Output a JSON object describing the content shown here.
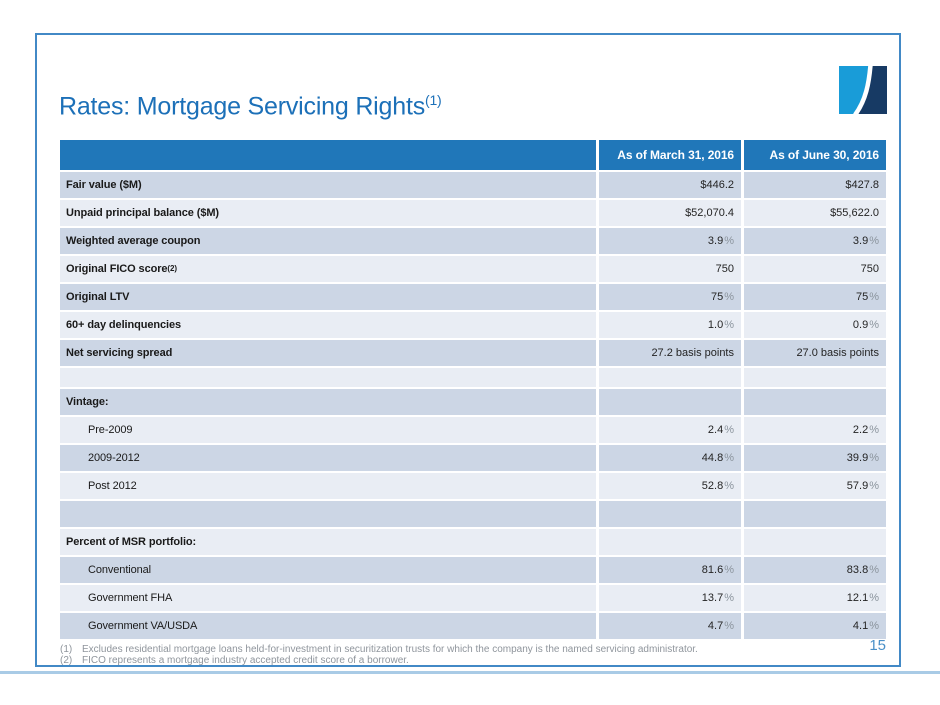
{
  "slide": {
    "title": "Rates: Mortgage Servicing Rights",
    "title_sup": "(1)",
    "page_number": "15"
  },
  "table": {
    "header": {
      "label_col": "",
      "col1": "As of March 31, 2016",
      "col2": "As of June 30, 2016"
    },
    "rows": [
      {
        "label": "Fair value ($M)",
        "bold": true,
        "v1": "$446.2",
        "v2": "$427.8"
      },
      {
        "label": "Unpaid principal balance ($M)",
        "bold": true,
        "v1": "$52,070.4",
        "v2": "$55,622.0"
      },
      {
        "label": "Weighted average coupon",
        "bold": true,
        "v1": "3.9%",
        "v2": "3.9%"
      },
      {
        "label": "Original FICO score",
        "sup": "(2)",
        "bold": true,
        "v1": "750",
        "v2": "750"
      },
      {
        "label": "Original LTV",
        "bold": true,
        "v1": "75%",
        "v2": "75%"
      },
      {
        "label": "60+ day delinquencies",
        "bold": true,
        "v1": "1.0%",
        "v2": "0.9%"
      },
      {
        "label": "Net servicing spread",
        "bold": true,
        "v1": "27.2 basis points",
        "v2": "27.0 basis points"
      },
      {
        "label": "",
        "short": true,
        "v1": "",
        "v2": ""
      },
      {
        "label": "Vintage:",
        "bold": true,
        "v1": "",
        "v2": ""
      },
      {
        "label": "Pre-2009",
        "indent": true,
        "v1": "2.4%",
        "v2": "2.2%"
      },
      {
        "label": "2009-2012",
        "indent": true,
        "v1": "44.8%",
        "v2": "39.9%"
      },
      {
        "label": "Post 2012",
        "indent": true,
        "v1": "52.8%",
        "v2": "57.9%"
      },
      {
        "label": "",
        "v1": "",
        "v2": ""
      },
      {
        "label": "Percent of MSR portfolio:",
        "bold": true,
        "v1": "",
        "v2": ""
      },
      {
        "label": "Conventional",
        "indent": true,
        "v1": "81.6%",
        "v2": "83.8%"
      },
      {
        "label": "Government FHA",
        "indent": true,
        "v1": "13.7%",
        "v2": "12.1%"
      },
      {
        "label": "Government VA/USDA",
        "indent": true,
        "v1": "4.7%",
        "v2": "4.1%"
      }
    ]
  },
  "footnotes": [
    {
      "marker": "(1)",
      "text": "Excludes residential mortgage loans held-for-investment in securitization trusts for which the company is the named servicing administrator."
    },
    {
      "marker": "(2)",
      "text": "FICO represents a mortgage industry accepted credit score of a borrower."
    }
  ],
  "icons": {
    "logo": "company-logo-swoosh"
  },
  "colors": {
    "accent_blue": "#2077b9",
    "title_blue": "#1c70b8",
    "frame_blue": "#4289c6",
    "rule_light_blue": "#a9cbe6",
    "row_dark": "#ccd6e5",
    "row_light": "#e9edf4",
    "logo_light_blue": "#199cd8",
    "logo_navy": "#173a64",
    "page_number_blue": "#4a90c8",
    "footnote_gray": "#8f959c",
    "pct_gray": "#8b949d"
  }
}
